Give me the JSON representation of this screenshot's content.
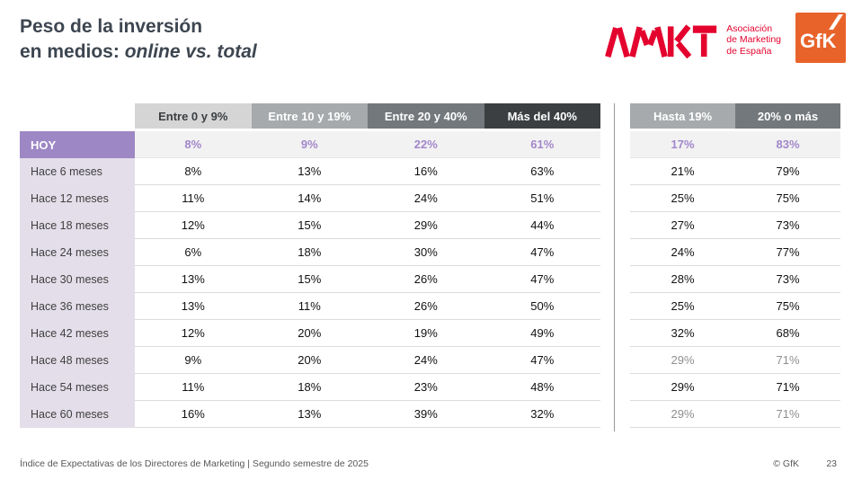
{
  "slide": {
    "title_line1": "Peso de la inversión",
    "title_line2_prefix": "en medios: ",
    "title_line2_emphasis": "online vs. total"
  },
  "logos": {
    "amkt_name": "AMKT",
    "amkt_tagline_line1": "Asociación",
    "amkt_tagline_line2": "de Marketing",
    "amkt_tagline_line3": "de España",
    "gfk_name": "GfK"
  },
  "colors": {
    "title_text": "#3d4650",
    "brand_red": "#e4032e",
    "gfk_orange": "#e8632a",
    "accent_purple": "#9d87c4",
    "value_purple": "#a287cb",
    "label_column_bg": "#e3dee9",
    "header_light_gray": "#d5d5d5",
    "header_medium_gray": "#a6aaad",
    "header_dark_gray": "#73787c",
    "header_charcoal": "#3b3f42",
    "muted_value": "#8f8f8f"
  },
  "table": {
    "left_headers": [
      "Entre 0 y 9%",
      "Entre 10 y 19%",
      "Entre 20 y 40%",
      "Más del 40%"
    ],
    "right_headers": [
      "Hasta 19%",
      "20% o más"
    ],
    "rows": [
      {
        "label": "HOY",
        "left": [
          "8%",
          "9%",
          "22%",
          "61%"
        ],
        "right": [
          "17%",
          "83%"
        ],
        "highlight": true
      },
      {
        "label": "Hace 6 meses",
        "left": [
          "8%",
          "13%",
          "16%",
          "63%"
        ],
        "right": [
          "21%",
          "79%"
        ]
      },
      {
        "label": "Hace 12 meses",
        "left": [
          "11%",
          "14%",
          "24%",
          "51%"
        ],
        "right": [
          "25%",
          "75%"
        ]
      },
      {
        "label": "Hace 18 meses",
        "left": [
          "12%",
          "15%",
          "29%",
          "44%"
        ],
        "right": [
          "27%",
          "73%"
        ]
      },
      {
        "label": "Hace 24 meses",
        "left": [
          "6%",
          "18%",
          "30%",
          "47%"
        ],
        "right": [
          "24%",
          "77%"
        ]
      },
      {
        "label": "Hace 30 meses",
        "left": [
          "13%",
          "15%",
          "26%",
          "47%"
        ],
        "right": [
          "28%",
          "73%"
        ]
      },
      {
        "label": "Hace 36 meses",
        "left": [
          "13%",
          "11%",
          "26%",
          "50%"
        ],
        "right": [
          "25%",
          "75%"
        ]
      },
      {
        "label": "Hace 42 meses",
        "left": [
          "12%",
          "20%",
          "19%",
          "49%"
        ],
        "right": [
          "32%",
          "68%"
        ]
      },
      {
        "label": "Hace 48 meses",
        "left": [
          "9%",
          "20%",
          "24%",
          "47%"
        ],
        "right": [
          "29%",
          "71%"
        ],
        "right_muted": true
      },
      {
        "label": "Hace 54 meses",
        "left": [
          "11%",
          "18%",
          "23%",
          "48%"
        ],
        "right": [
          "29%",
          "71%"
        ]
      },
      {
        "label": "Hace 60 meses",
        "left": [
          "16%",
          "13%",
          "39%",
          "32%"
        ],
        "right": [
          "29%",
          "71%"
        ],
        "right_muted": true
      }
    ]
  },
  "footer": {
    "source": "Índice de Expectativas de los Directores de Marketing | Segundo semestre de 2025",
    "copyright": "© GfK",
    "page": "23"
  }
}
